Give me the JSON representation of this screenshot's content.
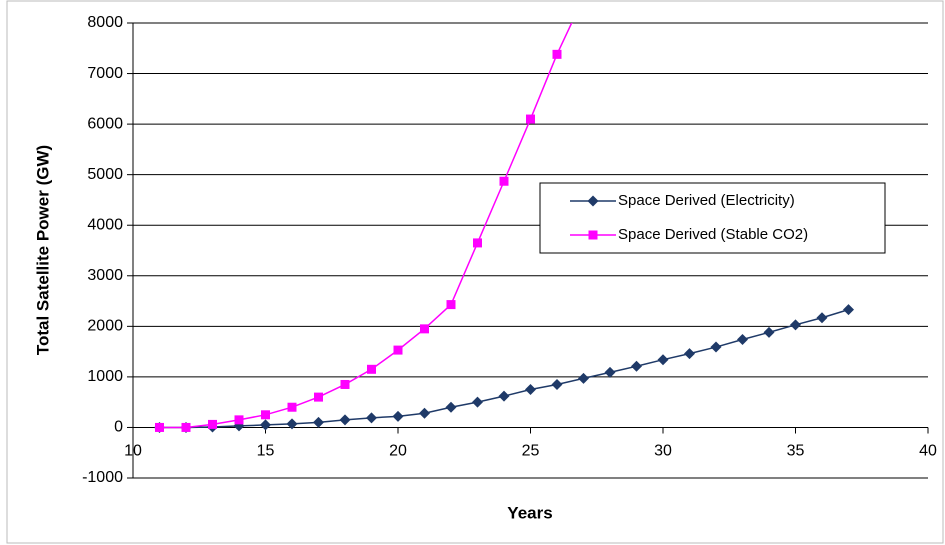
{
  "chart_data": {
    "type": "line",
    "xlabel": "Years",
    "ylabel": "Total Satellite Power (GW)",
    "xlim": [
      10,
      40
    ],
    "xticks": [
      10,
      15,
      20,
      25,
      30,
      35,
      40
    ],
    "ylim": [
      -1000,
      8000
    ],
    "yticks": [
      -1000,
      0,
      1000,
      2000,
      3000,
      4000,
      5000,
      6000,
      7000,
      8000
    ],
    "grid": true,
    "legend": "right",
    "series": [
      {
        "name": "Space Derived (Electricity)",
        "color": "#1f3a68",
        "marker": "diamond",
        "x": [
          11,
          12,
          13,
          14,
          15,
          16,
          17,
          18,
          19,
          20,
          21,
          22,
          23,
          24,
          25,
          26,
          27,
          28,
          29,
          30,
          31,
          32,
          33,
          34,
          35,
          36,
          37
        ],
        "values": [
          0,
          0,
          10,
          30,
          50,
          70,
          100,
          150,
          190,
          220,
          280,
          400,
          500,
          620,
          750,
          850,
          970,
          1090,
          1210,
          1340,
          1460,
          1590,
          1740,
          1880,
          2030,
          2170,
          2330
        ]
      },
      {
        "name": "Space Derived (Stable CO2)",
        "color": "#ff00ff",
        "marker": "square",
        "x": [
          11,
          12,
          13,
          14,
          15,
          16,
          17,
          18,
          19,
          20,
          21,
          22,
          23,
          24,
          25,
          26,
          27
        ],
        "values": [
          0,
          0,
          60,
          150,
          250,
          400,
          600,
          850,
          1150,
          1530,
          1950,
          2430,
          3650,
          4870,
          6100,
          7380,
          8500
        ]
      }
    ]
  }
}
